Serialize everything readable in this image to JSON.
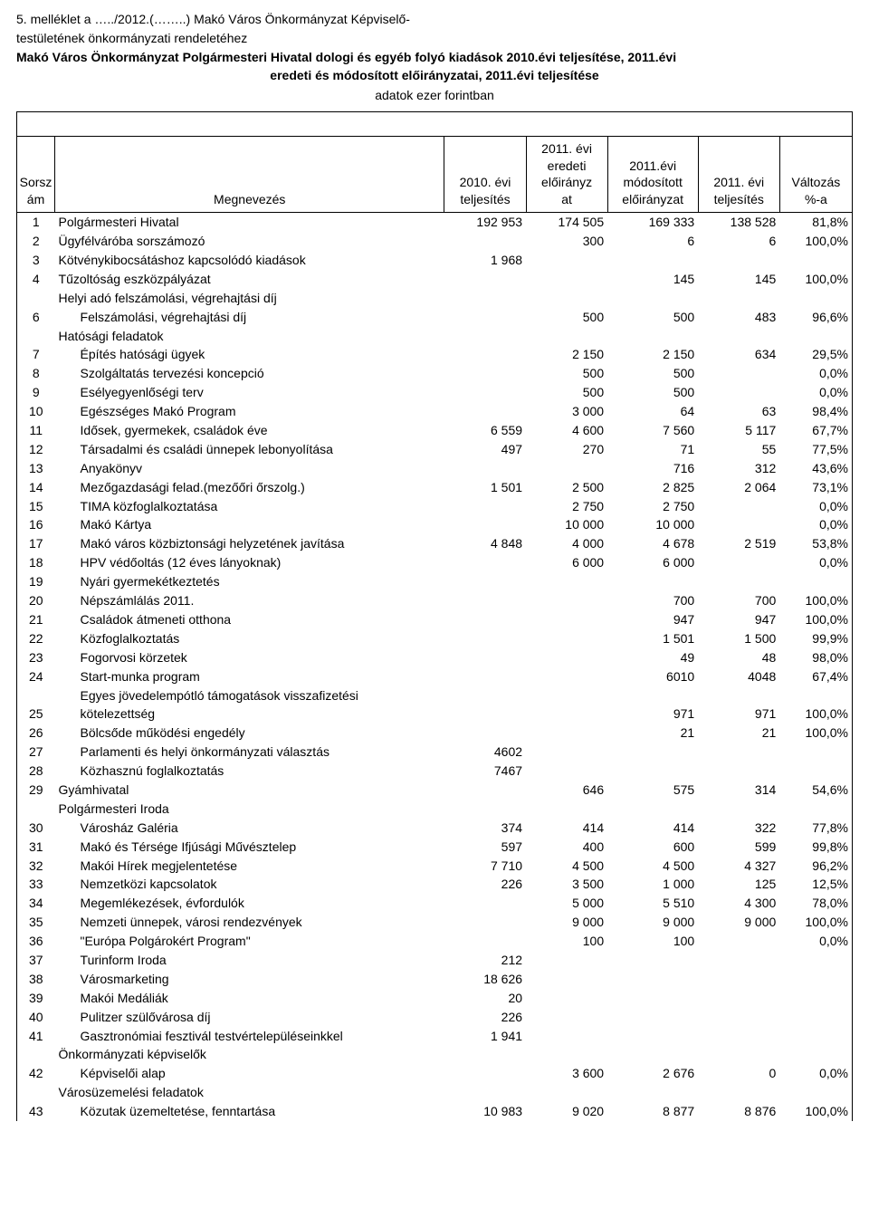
{
  "header": {
    "line1": "5. melléklet a …../2012.(……..) Makó Város Önkormányzat Képviselő-",
    "line2": "testületének önkormányzati rendeletéhez",
    "boldline": "Makó Város Önkormányzat Polgármesteri Hivatal dologi és egyéb folyó kiadások 2010.évi teljesítése, 2011.évi",
    "boldcenter": "eredeti és módosított előirányzatai, 2011.évi teljesítése",
    "sub": "adatok ezer forintban"
  },
  "cols": {
    "sorsz": "Sorsz\nám",
    "megnev": "Megnevezés",
    "c1": "2010. évi\nteljesítés",
    "c2": "2011. évi\neredeti\nelőirányz\nat",
    "c3": "2011.évi\nmódosított\nelőirányzat",
    "c4": "2011. évi\nteljesítés",
    "c5": "Változás\n%-a"
  },
  "rows": [
    {
      "n": "1",
      "name": "Polgármesteri Hivatal",
      "v": [
        "192 953",
        "174 505",
        "169 333",
        "138 528",
        "81,8%"
      ]
    },
    {
      "n": "2",
      "name": "Ügyfélváróba sorszámozó",
      "v": [
        "",
        "300",
        "6",
        "6",
        "100,0%"
      ]
    },
    {
      "n": "3",
      "name": "Kötvénykibocsátáshoz kapcsolódó kiadások",
      "v": [
        "1 968",
        "",
        "",
        "",
        ""
      ]
    },
    {
      "n": "4",
      "name": "Tűzoltóság eszközpályázat",
      "v": [
        "",
        "",
        "145",
        "145",
        "100,0%"
      ]
    },
    {
      "n": "",
      "name": "Helyi adó felszámolási, végrehajtási díj",
      "v": [
        "",
        "",
        "",
        "",
        ""
      ]
    },
    {
      "n": "6",
      "name": "Felszámolási, végrehajtási díj",
      "indent": 1,
      "v": [
        "",
        "500",
        "500",
        "483",
        "96,6%"
      ]
    },
    {
      "n": "",
      "name": "Hatósági feladatok",
      "v": [
        "",
        "",
        "",
        "",
        ""
      ]
    },
    {
      "n": "7",
      "name": "Építés hatósági ügyek",
      "indent": 1,
      "v": [
        "",
        "2 150",
        "2 150",
        "634",
        "29,5%"
      ]
    },
    {
      "n": "8",
      "name": "Szolgáltatás tervezési koncepció",
      "indent": 1,
      "v": [
        "",
        "500",
        "500",
        "",
        "0,0%"
      ]
    },
    {
      "n": "9",
      "name": "Esélyegyenlőségi terv",
      "indent": 1,
      "v": [
        "",
        "500",
        "500",
        "",
        "0,0%"
      ]
    },
    {
      "n": "10",
      "name": "Egészséges Makó Program",
      "indent": 1,
      "v": [
        "",
        "3 000",
        "64",
        "63",
        "98,4%"
      ]
    },
    {
      "n": "11",
      "name": "Idősek, gyermekek, családok éve",
      "indent": 1,
      "v": [
        "6 559",
        "4 600",
        "7 560",
        "5 117",
        "67,7%"
      ]
    },
    {
      "n": "12",
      "name": "Társadalmi és családi ünnepek lebonyolítása",
      "indent": 1,
      "v": [
        "497",
        "270",
        "71",
        "55",
        "77,5%"
      ]
    },
    {
      "n": "13",
      "name": "Anyakönyv",
      "indent": 1,
      "v": [
        "",
        "",
        "716",
        "312",
        "43,6%"
      ]
    },
    {
      "n": "14",
      "name": "Mezőgazdasági felad.(mezőőri őrszolg.)",
      "indent": 1,
      "v": [
        "1 501",
        "2 500",
        "2 825",
        "2 064",
        "73,1%"
      ]
    },
    {
      "n": "15",
      "name": "TIMA közfoglalkoztatása",
      "indent": 1,
      "v": [
        "",
        "2 750",
        "2 750",
        "",
        "0,0%"
      ]
    },
    {
      "n": "16",
      "name": "Makó Kártya",
      "indent": 1,
      "v": [
        "",
        "10 000",
        "10 000",
        "",
        "0,0%"
      ]
    },
    {
      "n": "17",
      "name": "Makó város közbiztonsági helyzetének javítása",
      "indent": 1,
      "v": [
        "4 848",
        "4 000",
        "4 678",
        "2 519",
        "53,8%"
      ]
    },
    {
      "n": "18",
      "name": "HPV védőoltás (12 éves lányoknak)",
      "indent": 1,
      "v": [
        "",
        "6 000",
        "6 000",
        "",
        "0,0%"
      ]
    },
    {
      "n": "19",
      "name": "Nyári gyermekétkeztetés",
      "indent": 1,
      "v": [
        "",
        "",
        "",
        "",
        ""
      ]
    },
    {
      "n": "20",
      "name": "Népszámlálás 2011.",
      "indent": 1,
      "v": [
        "",
        "",
        "700",
        "700",
        "100,0%"
      ]
    },
    {
      "n": "21",
      "name": "Családok átmeneti otthona",
      "indent": 1,
      "v": [
        "",
        "",
        "947",
        "947",
        "100,0%"
      ]
    },
    {
      "n": "22",
      "name": "Közfoglalkoztatás",
      "indent": 1,
      "v": [
        "",
        "",
        "1 501",
        "1 500",
        "99,9%"
      ]
    },
    {
      "n": "23",
      "name": "Fogorvosi körzetek",
      "indent": 1,
      "v": [
        "",
        "",
        "49",
        "48",
        "98,0%"
      ]
    },
    {
      "n": "24",
      "name": "Start-munka program",
      "indent": 1,
      "v": [
        "",
        "",
        "6010",
        "4048",
        "67,4%"
      ]
    },
    {
      "n": "",
      "name": "Egyes jövedelempótló támogatások visszafizetési",
      "indent": 1,
      "v": [
        "",
        "",
        "",
        "",
        ""
      ]
    },
    {
      "n": "25",
      "name": "kötelezettség",
      "indent": 1,
      "v": [
        "",
        "",
        "971",
        "971",
        "100,0%"
      ]
    },
    {
      "n": "26",
      "name": "Bölcsőde működési engedély",
      "indent": 1,
      "v": [
        "",
        "",
        "21",
        "21",
        "100,0%"
      ]
    },
    {
      "n": "27",
      "name": "Parlamenti és helyi önkormányzati választás",
      "indent": 1,
      "v": [
        "4602",
        "",
        "",
        "",
        ""
      ]
    },
    {
      "n": "28",
      "name": "Közhasznú foglalkoztatás",
      "indent": 1,
      "v": [
        "7467",
        "",
        "",
        "",
        ""
      ]
    },
    {
      "n": "29",
      "name": "Gyámhivatal",
      "v": [
        "",
        "646",
        "575",
        "314",
        "54,6%"
      ]
    },
    {
      "n": "",
      "name": "Polgármesteri Iroda",
      "v": [
        "",
        "",
        "",
        "",
        ""
      ]
    },
    {
      "n": "30",
      "name": "Városház Galéria",
      "indent": 1,
      "v": [
        "374",
        "414",
        "414",
        "322",
        "77,8%"
      ]
    },
    {
      "n": "31",
      "name": "Makó és Térsége Ifjúsági Művésztelep",
      "indent": 1,
      "v": [
        "597",
        "400",
        "600",
        "599",
        "99,8%"
      ]
    },
    {
      "n": "32",
      "name": "Makói Hírek megjelentetése",
      "indent": 1,
      "v": [
        "7 710",
        "4 500",
        "4 500",
        "4 327",
        "96,2%"
      ]
    },
    {
      "n": "33",
      "name": "Nemzetközi kapcsolatok",
      "indent": 1,
      "v": [
        "226",
        "3 500",
        "1 000",
        "125",
        "12,5%"
      ]
    },
    {
      "n": "34",
      "name": "Megemlékezések, évfordulók",
      "indent": 1,
      "v": [
        "",
        "5 000",
        "5 510",
        "4 300",
        "78,0%"
      ]
    },
    {
      "n": "35",
      "name": "Nemzeti ünnepek, városi rendezvények",
      "indent": 1,
      "v": [
        "",
        "9 000",
        "9 000",
        "9 000",
        "100,0%"
      ]
    },
    {
      "n": "36",
      "name": "\"Európa Polgárokért Program\"",
      "indent": 1,
      "v": [
        "",
        "100",
        "100",
        "",
        "0,0%"
      ]
    },
    {
      "n": "37",
      "name": "Turinform Iroda",
      "indent": 1,
      "v": [
        "212",
        "",
        "",
        "",
        ""
      ]
    },
    {
      "n": "38",
      "name": "Városmarketing",
      "indent": 1,
      "v": [
        "18 626",
        "",
        "",
        "",
        ""
      ]
    },
    {
      "n": "39",
      "name": "Makói Medáliák",
      "indent": 1,
      "v": [
        "20",
        "",
        "",
        "",
        ""
      ]
    },
    {
      "n": "40",
      "name": "Pulitzer szülővárosa díj",
      "indent": 1,
      "v": [
        "226",
        "",
        "",
        "",
        ""
      ]
    },
    {
      "n": "41",
      "name": "Gasztronómiai fesztivál testvértelepüléseinkkel",
      "indent": 1,
      "v": [
        "1 941",
        "",
        "",
        "",
        ""
      ]
    },
    {
      "n": "",
      "name": "Önkormányzati képviselők",
      "v": [
        "",
        "",
        "",
        "",
        ""
      ]
    },
    {
      "n": "42",
      "name": "Képviselői alap",
      "indent": 1,
      "v": [
        "",
        "3 600",
        "2 676",
        "0",
        "0,0%"
      ]
    },
    {
      "n": "",
      "name": "Városüzemelési feladatok",
      "v": [
        "",
        "",
        "",
        "",
        ""
      ]
    },
    {
      "n": "43",
      "name": "Közutak üzemeltetése, fenntartása",
      "indent": 1,
      "v": [
        "10 983",
        "9 020",
        "8 877",
        "8 876",
        "100,0%"
      ]
    }
  ],
  "style": {
    "bg": "#ffffff",
    "fg": "#000000",
    "border": "#000000",
    "font_size_pt": 10.5
  }
}
